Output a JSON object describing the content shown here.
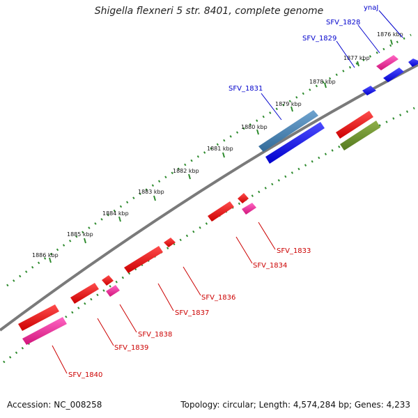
{
  "title": "Shigella flexneri 5 str. 8401, complete genome",
  "footer": {
    "accession": "Accession: NC_008258",
    "summary": "Topology: circular; Length: 4,574,284 bp; Genes: 4,233"
  },
  "colors": {
    "backbone": "#7a7a7a",
    "tick_dots": "#2e8b2e",
    "label_forward": "#0000cc",
    "label_reverse": "#cc0000"
  },
  "kbp_ticks": [
    "1876 kbp",
    "1877 kbp",
    "1878 kbp",
    "1879 kbp",
    "1880 kbp",
    "1881 kbp",
    "1882 kbp",
    "1883 kbp",
    "1884 kbp",
    "1885 kbp",
    "1886 kbp"
  ],
  "genes": [
    {
      "name": "ynaJ",
      "strand": "forward",
      "color": "#0000ff"
    },
    {
      "name": "SFV_1828",
      "strand": "forward",
      "color": "#0000ff"
    },
    {
      "name": "SFV_1829",
      "strand": "forward",
      "color": "#0000ff"
    },
    {
      "name": "SFV_1831",
      "strand": "forward",
      "color": "#4682b4"
    },
    {
      "name": "SFV_1833",
      "strand": "reverse",
      "color": "#ff1493"
    },
    {
      "name": "SFV_1834",
      "strand": "reverse",
      "color": "#ff0000"
    },
    {
      "name": "SFV_1836",
      "strand": "reverse",
      "color": "#ff0000"
    },
    {
      "name": "SFV_1837",
      "strand": "reverse",
      "color": "#ff0000"
    },
    {
      "name": "SFV_1838",
      "strand": "reverse",
      "color": "#ff1493"
    },
    {
      "name": "SFV_1839",
      "strand": "reverse",
      "color": "#ff0000"
    },
    {
      "name": "SFV_1840",
      "strand": "reverse",
      "color": "#ff1493"
    }
  ]
}
